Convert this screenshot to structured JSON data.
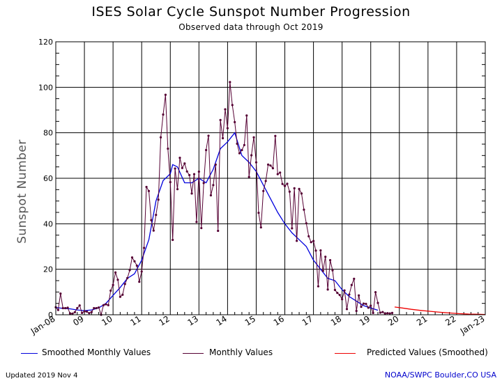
{
  "header": {
    "title": "ISES Solar Cycle Sunspot Number Progression",
    "subtitle": "Observed data through Oct 2019"
  },
  "footer": {
    "updated": "Updated 2019 Nov  4",
    "credit": "NOAA/SWPC Boulder,CO USA"
  },
  "colors": {
    "smoothed": "#0000dd",
    "monthly": "#550033",
    "predicted": "#ee0000",
    "grid": "#000000"
  },
  "chart_data": {
    "type": "line",
    "title": "ISES Solar Cycle Sunspot Number Progression",
    "subtitle": "Observed data through Oct 2019",
    "xlabel": "",
    "ylabel": "Sunspot Number",
    "xlim": [
      "2008-01",
      "2023-01"
    ],
    "ylim": [
      0,
      120
    ],
    "yticks": [
      0,
      20,
      40,
      60,
      80,
      100,
      120
    ],
    "xtick_labels": [
      "Jan-08",
      "09",
      "10",
      "11",
      "12",
      "13",
      "14",
      "15",
      "16",
      "17",
      "18",
      "19",
      "20",
      "21",
      "22",
      "Jan-23"
    ],
    "grid": true,
    "legend_position": "bottom",
    "series": [
      {
        "name": "Smoothed Monthly Values",
        "kind": "smoothed",
        "x": [
          "2008-01",
          "2008-04",
          "2008-07",
          "2008-10",
          "2009-01",
          "2009-04",
          "2009-07",
          "2009-10",
          "2010-01",
          "2010-04",
          "2010-07",
          "2010-10",
          "2011-01",
          "2011-04",
          "2011-07",
          "2011-10",
          "2012-01",
          "2012-02",
          "2012-04",
          "2012-07",
          "2012-10",
          "2013-01",
          "2013-04",
          "2013-07",
          "2013-10",
          "2014-01",
          "2014-04",
          "2014-07",
          "2014-10",
          "2015-01",
          "2015-04",
          "2015-07",
          "2015-10",
          "2016-01",
          "2016-04",
          "2016-07",
          "2016-10",
          "2017-01",
          "2017-04",
          "2017-07",
          "2017-10",
          "2018-01",
          "2018-04",
          "2018-07",
          "2018-10",
          "2019-01",
          "2019-04"
        ],
        "y": [
          3.2,
          2.8,
          2.6,
          2.1,
          1.8,
          2.1,
          3.0,
          5.0,
          8.5,
          12.0,
          16.0,
          18.0,
          24.0,
          33.0,
          50.0,
          59.0,
          62.0,
          66.0,
          65.0,
          58.0,
          58.0,
          60.0,
          58.0,
          64.0,
          73.0,
          76.0,
          80.0,
          70.0,
          67.0,
          63.0,
          57.0,
          51.0,
          45.0,
          40.0,
          36.0,
          33.0,
          30.0,
          24.0,
          20.0,
          16.0,
          15.0,
          11.0,
          8.0,
          6.0,
          4.0,
          3.0,
          2.0
        ]
      },
      {
        "name": "Monthly Values",
        "kind": "monthly",
        "x": [
          "2008-01",
          "2008-02",
          "2008-03",
          "2008-04",
          "2008-05",
          "2008-06",
          "2008-07",
          "2008-08",
          "2008-09",
          "2008-10",
          "2008-11",
          "2008-12",
          "2009-01",
          "2009-02",
          "2009-03",
          "2009-04",
          "2009-05",
          "2009-06",
          "2009-07",
          "2009-08",
          "2009-09",
          "2009-10",
          "2009-11",
          "2009-12",
          "2010-01",
          "2010-02",
          "2010-03",
          "2010-04",
          "2010-05",
          "2010-06",
          "2010-07",
          "2010-08",
          "2010-09",
          "2010-10",
          "2010-11",
          "2010-12",
          "2011-01",
          "2011-02",
          "2011-03",
          "2011-04",
          "2011-05",
          "2011-06",
          "2011-07",
          "2011-08",
          "2011-09",
          "2011-10",
          "2011-11",
          "2011-12",
          "2012-01",
          "2012-02",
          "2012-03",
          "2012-04",
          "2012-05",
          "2012-06",
          "2012-07",
          "2012-08",
          "2012-09",
          "2012-10",
          "2012-11",
          "2012-12",
          "2013-01",
          "2013-02",
          "2013-03",
          "2013-04",
          "2013-05",
          "2013-06",
          "2013-07",
          "2013-08",
          "2013-09",
          "2013-10",
          "2013-11",
          "2013-12",
          "2014-01",
          "2014-02",
          "2014-03",
          "2014-04",
          "2014-05",
          "2014-06",
          "2014-07",
          "2014-08",
          "2014-09",
          "2014-10",
          "2014-11",
          "2014-12",
          "2015-01",
          "2015-02",
          "2015-03",
          "2015-04",
          "2015-05",
          "2015-06",
          "2015-07",
          "2015-08",
          "2015-09",
          "2015-10",
          "2015-11",
          "2015-12",
          "2016-01",
          "2016-02",
          "2016-03",
          "2016-04",
          "2016-05",
          "2016-06",
          "2016-07",
          "2016-08",
          "2016-09",
          "2016-10",
          "2016-11",
          "2016-12",
          "2017-01",
          "2017-02",
          "2017-03",
          "2017-04",
          "2017-05",
          "2017-06",
          "2017-07",
          "2017-08",
          "2017-09",
          "2017-10",
          "2017-11",
          "2017-12",
          "2018-01",
          "2018-02",
          "2018-03",
          "2018-04",
          "2018-05",
          "2018-06",
          "2018-07",
          "2018-08",
          "2018-09",
          "2018-10",
          "2018-11",
          "2018-12",
          "2019-01",
          "2019-02",
          "2019-03",
          "2019-04",
          "2019-05",
          "2019-06",
          "2019-07",
          "2019-08",
          "2019-09",
          "2019-10"
        ],
        "y": [
          3.3,
          2.1,
          9.3,
          2.9,
          2.9,
          3.1,
          0.5,
          0.5,
          1.1,
          2.9,
          4.1,
          0.8,
          1.5,
          1.4,
          0.7,
          1.2,
          2.9,
          2.9,
          3.2,
          0,
          4.2,
          4.6,
          4.2,
          10.6,
          13.1,
          18.6,
          15.4,
          7.9,
          8.8,
          13.5,
          16.1,
          19.6,
          25.2,
          23.5,
          21.6,
          14.5,
          19.0,
          29.4,
          56.2,
          54.4,
          41.6,
          37.0,
          43.9,
          50.6,
          78.0,
          88.0,
          96.7,
          73.0,
          58.3,
          32.9,
          64.3,
          55.2,
          69.0,
          64.5,
          66.5,
          63.0,
          61.4,
          53.3,
          61.8,
          40.8,
          62.9,
          38.1,
          57.9,
          72.4,
          78.7,
          52.5,
          57.0,
          66.0,
          36.9,
          85.6,
          77.6,
          90.3,
          82.0,
          102.3,
          92.2,
          84.7,
          75.2,
          71.0,
          72.4,
          74.6,
          87.6,
          60.6,
          70.1,
          78.0,
          67.0,
          44.8,
          38.4,
          54.4,
          58.8,
          66.0,
          65.6,
          64.4,
          78.6,
          61.8,
          62.5,
          57.5,
          56.6,
          57.6,
          54.1,
          38.0,
          55.6,
          32.5,
          55.3,
          53.3,
          46.2,
          40.2,
          34.5,
          31.9,
          32.4,
          28.2,
          12.5,
          28.3,
          19.3,
          25.5,
          11.1,
          24.0,
          19.5,
          10.9,
          9.6,
          8.7,
          6.8,
          10.7,
          2.5,
          8.9,
          13.1,
          15.8,
          1.7,
          8.5,
          3.5,
          4.9,
          4.8,
          3.1,
          4.0,
          0.8,
          9.9,
          5.2,
          0.9,
          1.2,
          0.5,
          0.7,
          0.6,
          0.8
        ],
        "note_values_approximate": true
      },
      {
        "name": "Predicted Values (Smoothed)",
        "kind": "predicted",
        "x": [
          "2019-11",
          "2020-02",
          "2020-06",
          "2020-10",
          "2021-02",
          "2021-06",
          "2021-10",
          "2022-02",
          "2022-06",
          "2022-10",
          "2023-01"
        ],
        "y": [
          3.4,
          3.0,
          2.4,
          1.9,
          1.5,
          1.1,
          0.8,
          0.5,
          0.3,
          0.2,
          0.1
        ]
      }
    ]
  }
}
